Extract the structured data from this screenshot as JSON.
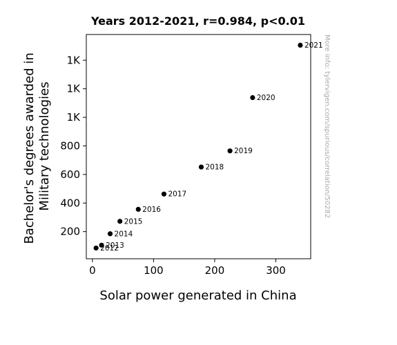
{
  "chart_data": {
    "type": "scatter",
    "title": "Years 2012-2021, r=0.984, p<0.01",
    "xlabel": "Solar power generated in China",
    "ylabel_lines": [
      "Bachelor's degrees awarded in",
      "Military technologies"
    ],
    "xlim": [
      -10,
      357
    ],
    "ylim": [
      10,
      1580
    ],
    "x_ticks": [
      {
        "value": 0,
        "label": "0"
      },
      {
        "value": 100,
        "label": "100"
      },
      {
        "value": 200,
        "label": "200"
      },
      {
        "value": 300,
        "label": "300"
      }
    ],
    "y_ticks": [
      {
        "value": 200,
        "label": "200"
      },
      {
        "value": 400,
        "label": "400"
      },
      {
        "value": 600,
        "label": "600"
      },
      {
        "value": 800,
        "label": "800"
      },
      {
        "value": 1000,
        "label": "1K"
      },
      {
        "value": 1200,
        "label": "1K"
      },
      {
        "value": 1400,
        "label": "1K"
      }
    ],
    "points": [
      {
        "label": "2012",
        "x": 6,
        "y": 85
      },
      {
        "label": "2013",
        "x": 15,
        "y": 105
      },
      {
        "label": "2014",
        "x": 29,
        "y": 185
      },
      {
        "label": "2015",
        "x": 45,
        "y": 272
      },
      {
        "label": "2016",
        "x": 75,
        "y": 356
      },
      {
        "label": "2017",
        "x": 117,
        "y": 463
      },
      {
        "label": "2018",
        "x": 178,
        "y": 652
      },
      {
        "label": "2019",
        "x": 225,
        "y": 765
      },
      {
        "label": "2020",
        "x": 262,
        "y": 1138
      },
      {
        "label": "2021",
        "x": 340,
        "y": 1505
      }
    ],
    "marker_color": "#000000",
    "grid": false,
    "watermark": "More info: tylervigen.com/spurious/correlation/50282"
  }
}
